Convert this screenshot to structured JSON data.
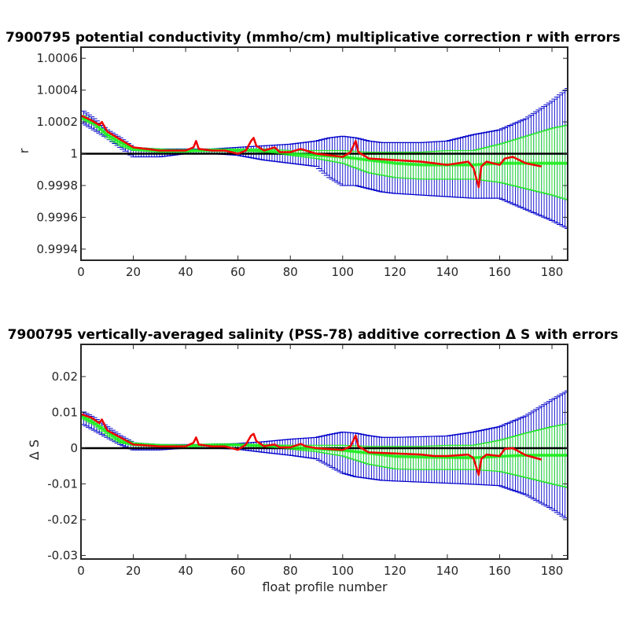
{
  "chart_data": [
    {
      "type": "line",
      "title": "7900795 potential conductivity (mmho/cm) multiplicative correction r with errors",
      "xlabel": "",
      "ylabel": "r",
      "xlim": [
        0,
        186
      ],
      "ylim": [
        0.99933,
        1.00067
      ],
      "x_ticks": [
        0,
        20,
        40,
        60,
        80,
        100,
        120,
        140,
        160,
        180
      ],
      "y_ticks": [
        0.9994,
        0.9996,
        0.9998,
        1,
        1.0002,
        1.0004,
        1.0006
      ],
      "y_tick_labels": [
        "0.9994",
        "0.9996",
        "0.9998",
        "1",
        "1.0002",
        "1.0004",
        "1.0006"
      ],
      "reference_line": 1,
      "grid": false,
      "series": [
        {
          "role": "blue error band (mean fit with errorbars)",
          "color": "#0000CC",
          "x": [
            0,
            5,
            10,
            15,
            20,
            30,
            40,
            50,
            60,
            70,
            80,
            90,
            95,
            100,
            105,
            110,
            115,
            120,
            130,
            140,
            150,
            160,
            170,
            180,
            186
          ],
          "lower": [
            1.0002,
            1.00015,
            1.0001,
            1.00004,
            0.99998,
            0.99998,
            1.0,
            1.0,
            0.99999,
            0.99996,
            0.99994,
            0.99992,
            0.99985,
            0.9998,
            0.9998,
            0.99978,
            0.99976,
            0.99975,
            0.99974,
            0.99973,
            0.99972,
            0.99972,
            0.99965,
            0.99958,
            0.99953
          ],
          "upper": [
            1.00028,
            1.00022,
            1.00015,
            1.0001,
            1.00004,
            1.00003,
            1.00003,
            1.00003,
            1.00004,
            1.00005,
            1.00006,
            1.00008,
            1.0001,
            1.00011,
            1.0001,
            1.00008,
            1.00007,
            1.00007,
            1.00007,
            1.00008,
            1.00012,
            1.00015,
            1.00022,
            1.00033,
            1.00041
          ]
        },
        {
          "role": "green error band (profile fit with errorbars)",
          "color": "#22EE22",
          "x": [
            0,
            5,
            10,
            15,
            20,
            30,
            40,
            50,
            60,
            70,
            80,
            90,
            100,
            110,
            120,
            130,
            140,
            150,
            160,
            170,
            180,
            186
          ],
          "lower": [
            1.00022,
            1.00018,
            1.0001,
            1.00005,
            1.00002,
            1.00001,
            1.00001,
            1.00002,
            1.00002,
            1.00001,
            0.99999,
            0.99997,
            0.99994,
            0.99988,
            0.99985,
            0.99984,
            0.99984,
            0.99984,
            0.99982,
            0.99978,
            0.99974,
            0.99971
          ],
          "upper": [
            1.00025,
            1.0002,
            1.00013,
            1.00008,
            1.00004,
            1.00003,
            1.00002,
            1.00003,
            1.00003,
            1.00003,
            1.00002,
            1.00002,
            1.00002,
            1.00001,
            1.00001,
            1.00001,
            1.00002,
            1.00002,
            1.00006,
            1.00011,
            1.00016,
            1.00018
          ]
        },
        {
          "role": "green fitted correction",
          "color": "#22EE22",
          "x": [
            0,
            5,
            10,
            15,
            20,
            30,
            40,
            50,
            60,
            70,
            80,
            90,
            100,
            110,
            120,
            130,
            140,
            150,
            160,
            170,
            180,
            186
          ],
          "y": [
            1.00023,
            1.00019,
            1.00012,
            1.00007,
            1.00003,
            1.00002,
            1.00002,
            1.00002,
            1.00002,
            1.00002,
            1.0,
            0.99999,
            0.99998,
            0.99996,
            0.99994,
            0.99993,
            0.99993,
            0.99993,
            0.99994,
            0.99994,
            0.99994,
            0.99994
          ]
        },
        {
          "role": "red correction",
          "color": "#EE0000",
          "x": [
            0,
            4,
            7,
            8,
            10,
            15,
            20,
            30,
            40,
            43,
            44,
            45,
            50,
            55,
            60,
            63,
            65,
            66,
            67,
            70,
            72,
            74,
            76,
            80,
            84,
            86,
            90,
            95,
            100,
            103,
            105,
            106,
            110,
            120,
            130,
            135,
            140,
            148,
            150,
            152,
            153,
            155,
            160,
            162,
            165,
            170,
            176
          ],
          "y": [
            1.00024,
            1.00021,
            1.00018,
            1.0002,
            1.00014,
            1.00009,
            1.00004,
            1.00002,
            1.00002,
            1.00004,
            1.00008,
            1.00003,
            1.00002,
            1.00002,
            1.0,
            1.00002,
            1.00008,
            1.0001,
            1.00005,
            1.00002,
            1.00003,
            1.00004,
            1.00001,
            1.00001,
            1.00003,
            1.00002,
            1.0,
            0.99999,
            0.99998,
            1.00001,
            1.00008,
            1.00001,
            0.99997,
            0.99996,
            0.99995,
            0.99994,
            0.99993,
            0.99995,
            0.99991,
            0.99979,
            0.99992,
            0.99995,
            0.99993,
            0.99997,
            0.99998,
            0.99994,
            0.99992
          ]
        }
      ]
    },
    {
      "type": "line",
      "title": "7900795 vertically-averaged salinity (PSS-78) additive correction Δ S with errors",
      "xlabel": "float profile number",
      "ylabel": "Δ S",
      "xlim": [
        0,
        186
      ],
      "ylim": [
        -0.031,
        0.029
      ],
      "x_ticks": [
        0,
        20,
        40,
        60,
        80,
        100,
        120,
        140,
        160,
        180
      ],
      "y_ticks": [
        -0.03,
        -0.02,
        -0.01,
        0,
        0.01,
        0.02
      ],
      "y_tick_labels": [
        "-0.03",
        "-0.02",
        "-0.01",
        "0",
        "0.01",
        "0.02"
      ],
      "reference_line": 0,
      "grid": false,
      "series": [
        {
          "role": "blue error band (mean fit with errorbars)",
          "color": "#0000CC",
          "x": [
            0,
            5,
            10,
            15,
            20,
            30,
            40,
            50,
            60,
            70,
            80,
            90,
            95,
            100,
            105,
            110,
            115,
            120,
            130,
            140,
            150,
            160,
            170,
            180,
            186
          ],
          "lower": [
            0.007,
            0.005,
            0.003,
            0.001,
            -0.0005,
            -0.0005,
            0.0,
            0.0,
            -0.0003,
            -0.0012,
            -0.002,
            -0.003,
            -0.005,
            -0.007,
            -0.008,
            -0.0085,
            -0.009,
            -0.0092,
            -0.0095,
            -0.0098,
            -0.0101,
            -0.0105,
            -0.013,
            -0.017,
            -0.02
          ],
          "upper": [
            0.0105,
            0.0085,
            0.006,
            0.0035,
            0.0015,
            0.001,
            0.001,
            0.001,
            0.0013,
            0.0018,
            0.0025,
            0.003,
            0.0038,
            0.0045,
            0.0042,
            0.0035,
            0.003,
            0.003,
            0.0032,
            0.0034,
            0.0045,
            0.006,
            0.009,
            0.0135,
            0.016
          ]
        },
        {
          "role": "green error band (profile fit with errorbars)",
          "color": "#22EE22",
          "x": [
            0,
            5,
            10,
            15,
            20,
            30,
            40,
            50,
            60,
            70,
            80,
            90,
            100,
            110,
            120,
            130,
            140,
            150,
            160,
            170,
            180,
            186
          ],
          "lower": [
            0.0085,
            0.0065,
            0.0035,
            0.0015,
            0.0008,
            0.0004,
            0.0004,
            0.0008,
            0.0008,
            0.0004,
            -0.0003,
            -0.001,
            -0.0022,
            -0.0045,
            -0.0058,
            -0.006,
            -0.006,
            -0.006,
            -0.0065,
            -0.0082,
            -0.01,
            -0.011
          ],
          "upper": [
            0.0095,
            0.0075,
            0.005,
            0.0028,
            0.0015,
            0.001,
            0.0008,
            0.001,
            0.001,
            0.001,
            0.0008,
            0.0008,
            0.0008,
            0.0005,
            0.0005,
            0.0005,
            0.0008,
            0.0008,
            0.0022,
            0.0042,
            0.006,
            0.0068
          ]
        },
        {
          "role": "green fitted correction",
          "color": "#22EE22",
          "x": [
            0,
            5,
            10,
            15,
            20,
            30,
            40,
            50,
            60,
            70,
            80,
            90,
            100,
            110,
            120,
            130,
            140,
            150,
            160,
            170,
            180,
            186
          ],
          "y": [
            0.009,
            0.007,
            0.0045,
            0.002,
            0.001,
            0.0007,
            0.0006,
            0.0009,
            0.0009,
            0.0007,
            0.0002,
            -0.0002,
            -0.0006,
            -0.0014,
            -0.0023,
            -0.0025,
            -0.0026,
            -0.0027,
            -0.0023,
            -0.002,
            -0.002,
            -0.002
          ]
        },
        {
          "role": "red correction",
          "color": "#EE0000",
          "x": [
            0,
            4,
            7,
            8,
            10,
            15,
            20,
            30,
            40,
            43,
            44,
            45,
            50,
            55,
            60,
            63,
            65,
            66,
            67,
            70,
            72,
            74,
            76,
            80,
            84,
            86,
            90,
            95,
            100,
            103,
            105,
            106,
            110,
            120,
            130,
            135,
            140,
            148,
            150,
            152,
            153,
            155,
            160,
            162,
            165,
            170,
            176
          ],
          "y": [
            0.0095,
            0.0085,
            0.007,
            0.008,
            0.005,
            0.003,
            0.001,
            0.0005,
            0.0005,
            0.0015,
            0.003,
            0.001,
            0.0005,
            0.0005,
            -0.0005,
            0.001,
            0.0035,
            0.004,
            0.002,
            0.0005,
            0.0008,
            0.001,
            0.0002,
            0.0002,
            0.0012,
            0.0005,
            0.0,
            -0.0003,
            -0.0005,
            0.0005,
            0.0035,
            0.0005,
            -0.0012,
            -0.0015,
            -0.0018,
            -0.0022,
            -0.0022,
            -0.0018,
            -0.0028,
            -0.0075,
            -0.003,
            -0.0018,
            -0.0022,
            -0.0002,
            0.0,
            -0.002,
            -0.0032
          ]
        }
      ]
    }
  ]
}
